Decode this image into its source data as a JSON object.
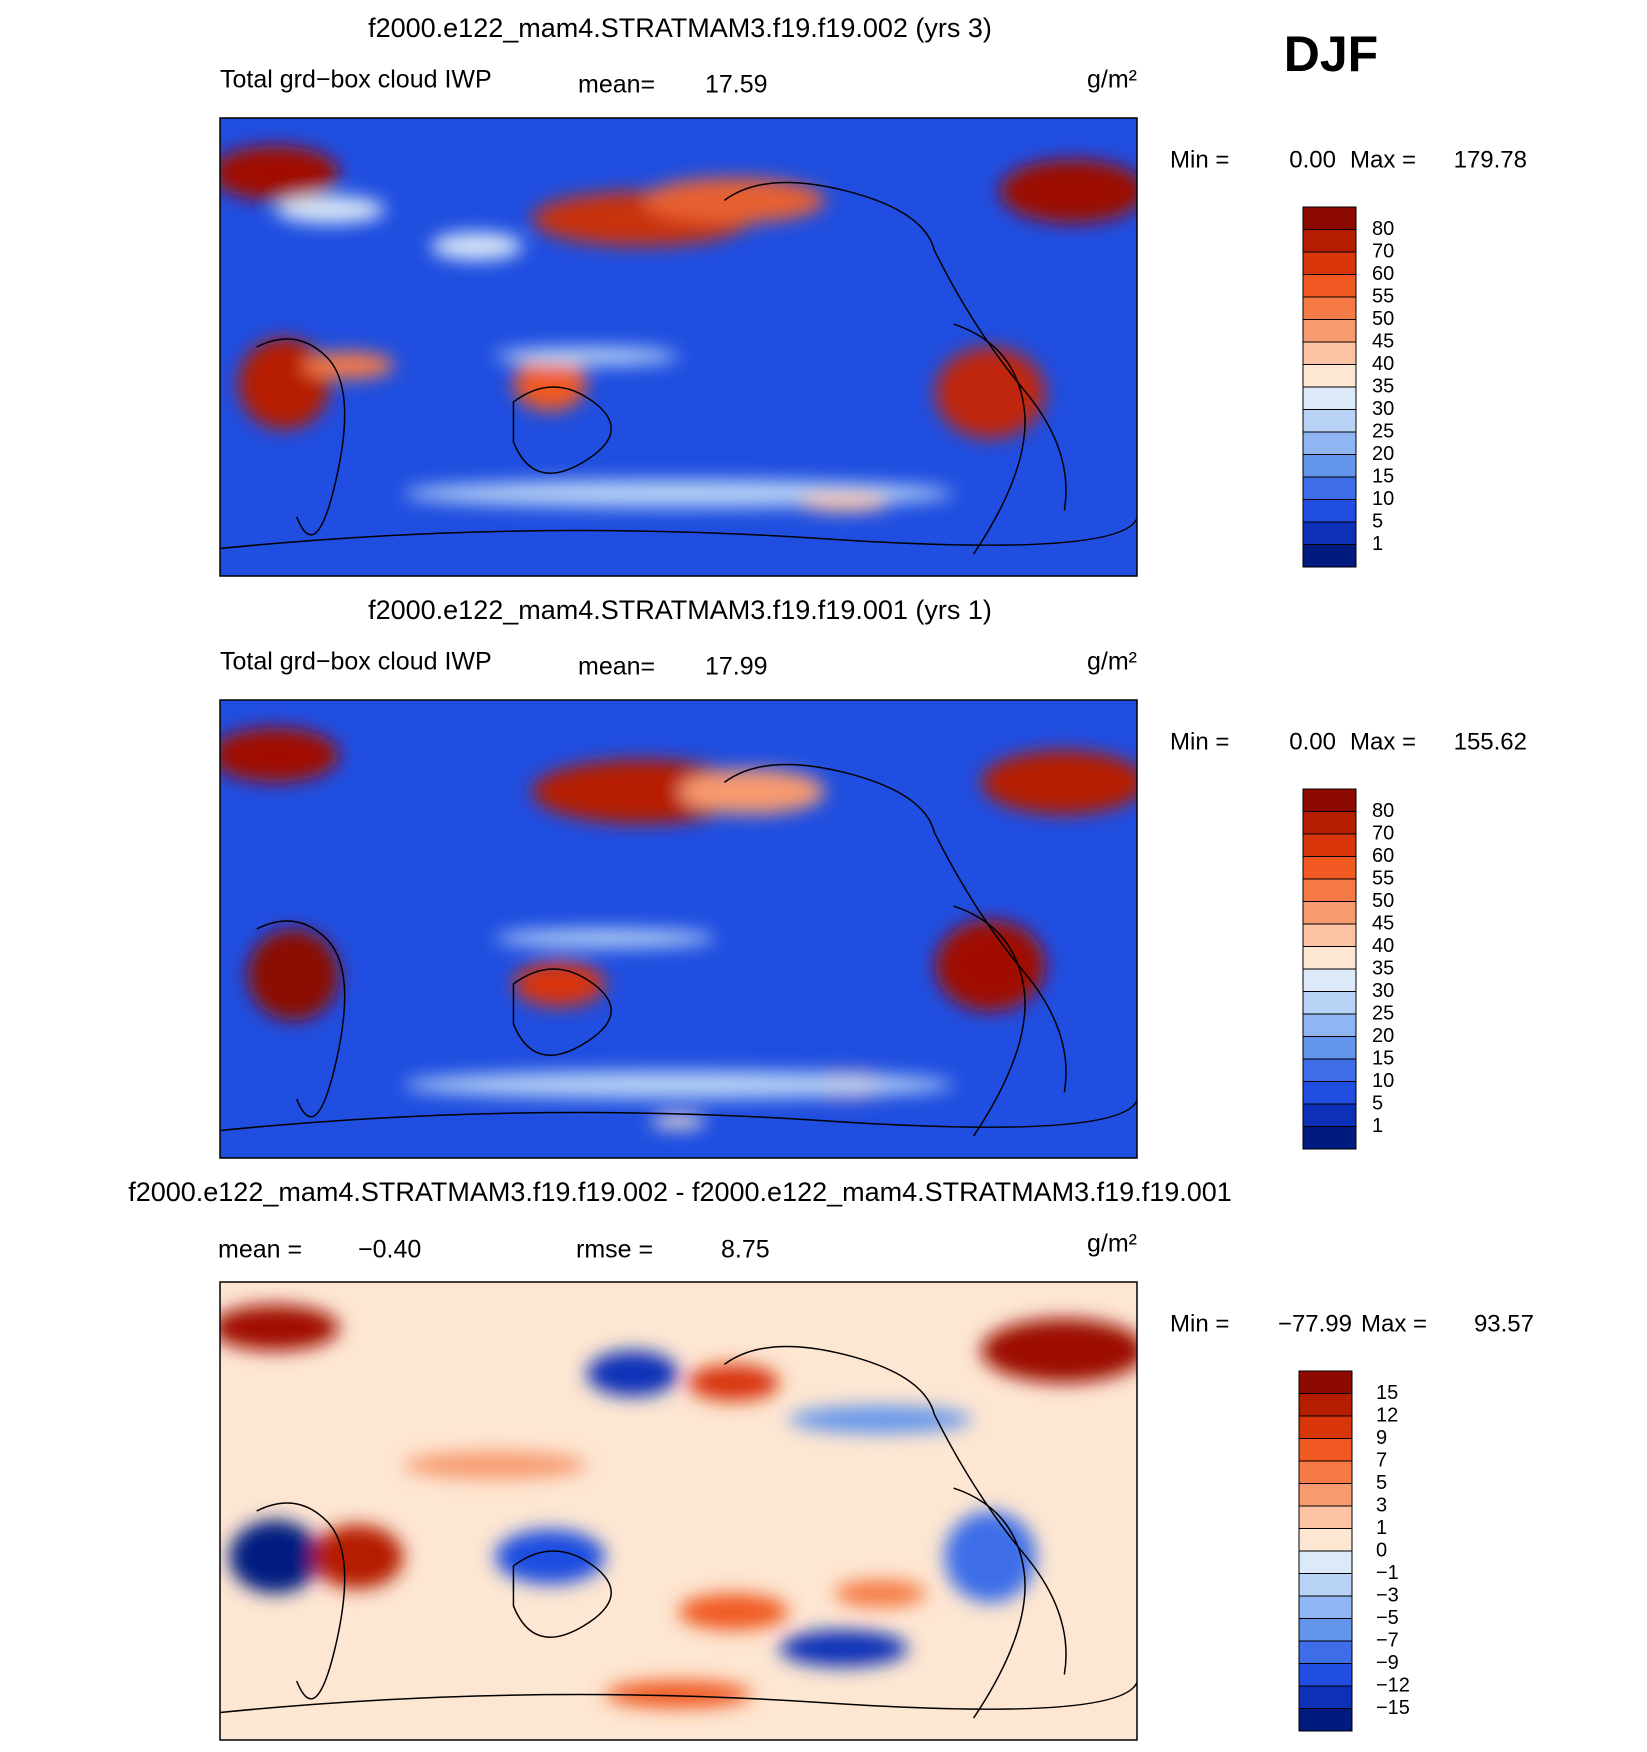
{
  "season": "DJF",
  "panels": [
    {
      "title": "f2000.e122_mam4.STRATMAM3.f19.f19.002 (yrs 3)",
      "variable": "Total grd−box cloud IWP",
      "stats": [
        {
          "label": "mean=",
          "value": "17.59"
        }
      ],
      "units": "g/m²",
      "min_label": "Min =",
      "min": "0.00",
      "max_label": "Max =",
      "max": "179.78",
      "colorbar": {
        "labels": [
          "80",
          "70",
          "60",
          "55",
          "50",
          "45",
          "40",
          "35",
          "30",
          "25",
          "20",
          "15",
          "10",
          "5",
          "1"
        ],
        "colors": [
          "#8c0a00",
          "#b51c00",
          "#d8360a",
          "#f05a22",
          "#f57a45",
          "#f89a6f",
          "#fbc3a4",
          "#fde6d2",
          "#dbe9f8",
          "#b8d3f5",
          "#8fb6f2",
          "#6495ed",
          "#3d6ee8",
          "#1f4ee0",
          "#0c30b8",
          "#001a80"
        ]
      }
    },
    {
      "title": "f2000.e122_mam4.STRATMAM3.f19.f19.001 (yrs 1)",
      "variable": "Total grd−box cloud IWP",
      "stats": [
        {
          "label": "mean=",
          "value": "17.99"
        }
      ],
      "units": "g/m²",
      "min_label": "Min =",
      "min": "0.00",
      "max_label": "Max =",
      "max": "155.62",
      "colorbar": {
        "labels": [
          "80",
          "70",
          "60",
          "55",
          "50",
          "45",
          "40",
          "35",
          "30",
          "25",
          "20",
          "15",
          "10",
          "5",
          "1"
        ],
        "colors": [
          "#8c0a00",
          "#b51c00",
          "#d8360a",
          "#f05a22",
          "#f57a45",
          "#f89a6f",
          "#fbc3a4",
          "#fde6d2",
          "#dbe9f8",
          "#b8d3f5",
          "#8fb6f2",
          "#6495ed",
          "#3d6ee8",
          "#1f4ee0",
          "#0c30b8",
          "#001a80"
        ]
      }
    },
    {
      "title": "f2000.e122_mam4.STRATMAM3.f19.f19.002 - f2000.e122_mam4.STRATMAM3.f19.f19.001",
      "stats": [
        {
          "label": "mean =",
          "value": "−0.40"
        },
        {
          "label": "rmse =",
          "value": "8.75"
        }
      ],
      "units": "g/m²",
      "min_label": "Min =",
      "min": "−77.99",
      "max_label": "Max =",
      "max": "93.57",
      "colorbar": {
        "labels": [
          "15",
          "12",
          "9",
          "7",
          "5",
          "3",
          "1",
          "0",
          "−1",
          "−3",
          "−5",
          "−7",
          "−9",
          "−12",
          "−15"
        ],
        "colors": [
          "#8c0a00",
          "#b51c00",
          "#d8360a",
          "#f05a22",
          "#f57a45",
          "#f89a6f",
          "#fbc3a4",
          "#fde6d2",
          "#dbe9f8",
          "#b8d3f5",
          "#8fb6f2",
          "#6495ed",
          "#3d6ee8",
          "#1f4ee0",
          "#0c30b8",
          "#001a80"
        ]
      }
    }
  ]
}
